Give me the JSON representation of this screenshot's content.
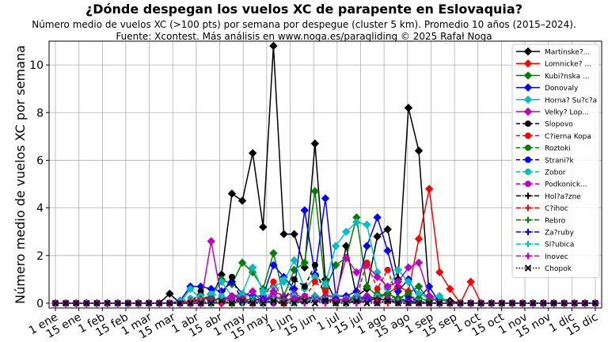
{
  "chart_data": {
    "type": "line",
    "title": "¿Dónde despegan los vuelos XC de parapente en Eslovaquia?",
    "subtitle": "Número medio de vuelos XC (>100 pts) por semana por despegue (cluster 5 km). Promedio 10 años (2015–2024).",
    "source": "Fuente: Xcontest. Más análisis en www.noga.es/paragliding © 2025 Rafał Noga",
    "ylabel": "Número medio de vuelos XC por semana",
    "xlabel": "",
    "ylim": [
      -0.2,
      11
    ],
    "yticks": [
      0,
      2,
      4,
      6,
      8,
      10
    ],
    "xlim": [
      0,
      52
    ],
    "xtick_labels": [
      "1 ene",
      "15 ene",
      "1 feb",
      "15 feb",
      "1 mar",
      "15 mar",
      "1 abr",
      "15 abr",
      "1 may",
      "15 may",
      "1 jun",
      "15 jun",
      "1 jul",
      "15 jul",
      "1 ago",
      "15 ago",
      "1 sep",
      "15 sep",
      "1 oct",
      "15 oct",
      "1 nov",
      "15 nov",
      "1 dic",
      "15 dic"
    ],
    "grid": true,
    "legend_position": "top-right",
    "x": [
      0,
      1,
      2,
      3,
      4,
      5,
      6,
      7,
      8,
      9,
      10,
      11,
      12,
      13,
      14,
      15,
      16,
      17,
      18,
      19,
      20,
      21,
      22,
      23,
      24,
      25,
      26,
      27,
      28,
      29,
      30,
      31,
      32,
      33,
      34,
      35,
      36,
      37,
      38,
      39,
      40,
      41,
      42,
      43,
      44,
      45,
      46,
      47,
      48,
      49,
      50,
      51,
      52
    ],
    "series": [
      {
        "name": "Martinske?...",
        "color": "#000000",
        "dash": "solid",
        "marker": "diamond",
        "values": [
          0,
          0,
          0,
          0,
          0,
          0,
          0,
          0,
          0,
          0,
          0,
          0.4,
          0,
          0,
          0.2,
          0.2,
          1.2,
          4.6,
          4.3,
          6.3,
          3.2,
          10.8,
          2.9,
          2.9,
          1.5,
          6.7,
          1.0,
          0.1,
          2.4,
          0.3,
          0.6,
          2.8,
          3.1,
          1.0,
          8.2,
          6.4,
          0.3,
          0.2,
          0.1,
          0,
          0,
          0,
          0,
          0,
          0,
          0,
          0,
          0,
          0,
          0,
          0,
          0,
          0
        ]
      },
      {
        "name": "Lomnicke? ...",
        "color": "#ff0000",
        "dash": "solid",
        "marker": "diamond",
        "values": [
          0,
          0,
          0,
          0,
          0,
          0,
          0,
          0,
          0,
          0,
          0,
          0,
          0,
          0,
          0,
          0,
          0,
          0,
          0.2,
          0,
          0.1,
          0.4,
          0,
          0.3,
          0.1,
          0.3,
          0.1,
          0.1,
          0,
          0.2,
          0.3,
          0.2,
          0.4,
          0.7,
          0.5,
          2.7,
          4.8,
          1.3,
          0.6,
          0,
          0.9,
          0,
          0,
          0,
          0,
          0,
          0,
          0,
          0,
          0,
          0,
          0,
          0
        ]
      },
      {
        "name": "Kubi?nska ...",
        "color": "#008000",
        "dash": "solid",
        "marker": "diamond",
        "values": [
          0,
          0,
          0,
          0,
          0,
          0,
          0,
          0,
          0,
          0,
          0,
          0,
          0,
          0,
          0,
          0.4,
          1.0,
          0.8,
          1.7,
          1.3,
          0.6,
          2.1,
          0.3,
          1.4,
          1.7,
          4.7,
          0.6,
          1.6,
          1.9,
          3.6,
          0.7,
          0.3,
          0.4,
          0.2,
          0.4,
          0.7,
          0.1,
          0.2,
          0,
          0,
          0,
          0,
          0,
          0,
          0,
          0,
          0,
          0,
          0,
          0,
          0,
          0,
          0
        ]
      },
      {
        "name": "Donovaly",
        "color": "#0000ff",
        "dash": "solid",
        "marker": "diamond",
        "values": [
          0,
          0,
          0,
          0,
          0,
          0,
          0,
          0,
          0,
          0,
          0,
          0,
          0.1,
          0.7,
          0.7,
          0.6,
          0.5,
          0.9,
          0.4,
          0.3,
          0.3,
          1.6,
          1.1,
          0.6,
          3.9,
          1.2,
          4.4,
          0.3,
          0.3,
          0.5,
          2.4,
          3.6,
          2.2,
          0.5,
          1.0,
          0.2,
          0.7,
          0,
          0,
          0,
          0,
          0,
          0,
          0,
          0,
          0,
          0,
          0,
          0,
          0,
          0,
          0,
          0
        ]
      },
      {
        "name": "Horna? Su?c?a",
        "color": "#00bfbf",
        "dash": "solid",
        "marker": "diamond",
        "values": [
          0,
          0,
          0,
          0,
          0,
          0,
          0,
          0,
          0,
          0,
          0,
          0,
          0,
          0.6,
          0.2,
          0.3,
          0.9,
          0.3,
          0.4,
          1.5,
          0.5,
          0.7,
          0.9,
          1.8,
          0.6,
          1.1,
          0.8,
          2.4,
          3.0,
          3.4,
          3.3,
          1.3,
          0.6,
          1.4,
          0.9,
          0.4,
          0.2,
          0.3,
          0,
          0,
          0,
          0,
          0,
          0,
          0,
          0,
          0,
          0,
          0,
          0,
          0,
          0,
          0
        ]
      },
      {
        "name": "Velky? Lop...",
        "color": "#bf00bf",
        "dash": "solid",
        "marker": "diamond",
        "values": [
          0,
          0,
          0,
          0,
          0,
          0,
          0,
          0,
          0,
          0,
          0,
          0,
          0,
          0,
          0,
          2.6,
          0.2,
          0.3,
          0.3,
          0.5,
          0,
          0.5,
          0.3,
          0.4,
          0.2,
          0.2,
          0.3,
          0.3,
          1.9,
          1.3,
          1.6,
          1.1,
          0.7,
          0.9,
          1.5,
          1.7,
          0.3,
          0,
          0,
          0,
          0,
          0,
          0,
          0,
          0,
          0,
          0,
          0,
          0,
          0,
          0,
          0,
          0
        ]
      },
      {
        "name": "Slopovo",
        "color": "#000000",
        "dash": "dash",
        "marker": "circle",
        "values": [
          0,
          0,
          0,
          0,
          0,
          0,
          0,
          0,
          0,
          0,
          0,
          0,
          0,
          0,
          0.5,
          0,
          0.3,
          1.1,
          0,
          0,
          0.1,
          0,
          0,
          1.0,
          0.7,
          1.6,
          0.2,
          0.1,
          0.1,
          0.1,
          0.3,
          0.2,
          0.1,
          0.1,
          0.1,
          0,
          0,
          0,
          0,
          0,
          0,
          0,
          0,
          0,
          0,
          0,
          0,
          0,
          0,
          0,
          0,
          0,
          0
        ]
      },
      {
        "name": "C?ierna Kopa",
        "color": "#ff0000",
        "dash": "dash",
        "marker": "circle",
        "values": [
          0,
          0,
          0,
          0,
          0,
          0,
          0,
          0,
          0,
          0,
          0,
          0,
          0,
          0.2,
          0.1,
          0.3,
          0.1,
          0.3,
          0.2,
          0,
          0.2,
          0.9,
          0.1,
          0.2,
          0.2,
          0.9,
          0.5,
          0.1,
          0.2,
          0.3,
          1.7,
          0.6,
          1.4,
          0.2,
          0.3,
          0.1,
          0,
          0,
          0,
          0,
          0,
          0,
          0,
          0,
          0,
          0,
          0,
          0,
          0,
          0,
          0,
          0,
          0
        ]
      },
      {
        "name": "Roztoki",
        "color": "#008000",
        "dash": "dash",
        "marker": "circle",
        "values": [
          0,
          0,
          0,
          0,
          0,
          0,
          0,
          0,
          0,
          0,
          0,
          0,
          0,
          0,
          0.1,
          0,
          0.1,
          0,
          0.2,
          0,
          0.1,
          0.2,
          0,
          0.3,
          0.1,
          0.2,
          0.1,
          0.2,
          0.1,
          0.3,
          0.2,
          0.4,
          0.3,
          0.2,
          0.3,
          0.2,
          0.1,
          0,
          0,
          0,
          0,
          0,
          0,
          0,
          0,
          0,
          0,
          0,
          0,
          0,
          0,
          0,
          0
        ]
      },
      {
        "name": "Strani?k",
        "color": "#0000ff",
        "dash": "dash",
        "marker": "circle",
        "values": [
          0,
          0,
          0,
          0,
          0,
          0,
          0,
          0,
          0,
          0,
          0,
          0,
          0,
          0,
          0.1,
          0.2,
          0.1,
          0.3,
          0.1,
          0.2,
          0.1,
          0.3,
          0.2,
          0.1,
          0.3,
          0.2,
          0.1,
          0.2,
          0.1,
          0.2,
          0.3,
          0.1,
          0.2,
          0.1,
          0.2,
          0.1,
          0,
          0,
          0,
          0,
          0,
          0,
          0,
          0,
          0,
          0,
          0,
          0,
          0,
          0,
          0,
          0,
          0
        ]
      },
      {
        "name": "Zobor",
        "color": "#00bfbf",
        "dash": "dash",
        "marker": "circle",
        "values": [
          0,
          0,
          0,
          0,
          0,
          0,
          0,
          0,
          0,
          0,
          0,
          0,
          0.1,
          0.2,
          0.3,
          0.4,
          0.3,
          0.2,
          0.3,
          0.2,
          0.4,
          0.3,
          1.0,
          0.3,
          0.2,
          0.3,
          0.2,
          0.3,
          0.2,
          0.3,
          0.2,
          0.3,
          0.2,
          0.1,
          0.1,
          0.1,
          0,
          0,
          0,
          0,
          0,
          0,
          0,
          0,
          0,
          0,
          0,
          0,
          0,
          0,
          0,
          0,
          0
        ]
      },
      {
        "name": "Podkonick...",
        "color": "#bf00bf",
        "dash": "dash",
        "marker": "circle",
        "values": [
          0,
          0,
          0,
          0,
          0,
          0,
          0,
          0,
          0,
          0,
          0,
          0,
          0,
          0,
          0.1,
          0.2,
          0.1,
          0.3,
          0.2,
          0.1,
          0.2,
          0.3,
          0.1,
          0.2,
          0.3,
          0.2,
          0.1,
          0.2,
          0.1,
          0.2,
          0.3,
          0.1,
          0.2,
          0.1,
          0.1,
          0,
          0,
          0,
          0,
          0,
          0,
          0,
          0,
          0,
          0,
          0,
          0,
          0,
          0,
          0,
          0,
          0,
          0
        ]
      },
      {
        "name": "Hol?a?zne",
        "color": "#000000",
        "dash": "dashdot",
        "marker": "plus",
        "values": [
          0,
          0,
          0,
          0,
          0,
          0,
          0,
          0,
          0,
          0,
          0,
          0,
          0,
          0,
          0.1,
          0,
          0.1,
          0.2,
          0,
          0.1,
          0,
          0.1,
          0,
          0.1,
          0,
          0.2,
          0.1,
          0,
          0.1,
          0,
          0.1,
          0.2,
          0.1,
          0,
          0.1,
          0,
          0,
          0,
          0,
          0,
          0,
          0,
          0,
          0,
          0,
          0,
          0,
          0,
          0,
          0,
          0,
          0,
          0
        ]
      },
      {
        "name": "C?ihoc",
        "color": "#ff0000",
        "dash": "dashdot",
        "marker": "plus",
        "values": [
          0,
          0,
          0,
          0,
          0,
          0,
          0,
          0,
          0,
          0,
          0,
          0,
          0,
          0.1,
          0.2,
          0.1,
          0,
          0.2,
          0.1,
          0,
          0.1,
          0.2,
          0,
          0.1,
          0.2,
          0.1,
          0,
          0.2,
          0.1,
          0,
          0.2,
          0.1,
          0,
          0.1,
          0.1,
          0,
          0,
          0,
          0,
          0,
          0,
          0,
          0,
          0,
          0,
          0,
          0,
          0,
          0,
          0,
          0,
          0,
          0
        ]
      },
      {
        "name": "Rebro",
        "color": "#008000",
        "dash": "dashdot",
        "marker": "plus",
        "values": [
          0,
          0,
          0,
          0,
          0,
          0,
          0,
          0,
          0,
          0,
          0,
          0,
          0,
          0,
          0,
          0.2,
          0.1,
          0,
          0.1,
          0.2,
          0.1,
          0,
          0.2,
          0.1,
          0,
          0.1,
          0.2,
          0,
          0.1,
          0.2,
          0.1,
          0,
          0.1,
          0.2,
          0,
          0.1,
          0,
          0,
          0,
          0,
          0,
          0,
          0,
          0,
          0,
          0,
          0,
          0,
          0,
          0,
          0,
          0,
          0
        ]
      },
      {
        "name": "Za?ruby",
        "color": "#0000ff",
        "dash": "dashdot",
        "marker": "plus",
        "values": [
          0,
          0,
          0,
          0,
          0,
          0,
          0,
          0,
          0,
          0,
          0,
          0,
          0,
          0,
          0,
          0.1,
          0.2,
          0.1,
          0,
          0.1,
          0.2,
          0,
          0.1,
          0.2,
          0,
          0.1,
          0.1,
          0.2,
          0,
          0.1,
          0.2,
          0,
          0.1,
          0,
          0.1,
          0,
          0,
          0,
          0,
          0,
          0,
          0,
          0,
          0,
          0,
          0,
          0,
          0,
          0,
          0,
          0,
          0,
          0
        ]
      },
      {
        "name": "Sl?ubica",
        "color": "#00bfbf",
        "dash": "dashdot",
        "marker": "plus",
        "values": [
          0,
          0,
          0,
          0,
          0,
          0,
          0,
          0,
          0,
          0,
          0,
          0,
          0,
          0,
          0.1,
          0,
          0.2,
          0.1,
          0,
          0.1,
          0,
          0.2,
          0.1,
          0,
          0.1,
          0.2,
          0,
          0.1,
          0,
          0.2,
          0.1,
          0,
          0.1,
          0.1,
          0,
          0,
          0,
          0,
          0,
          0,
          0,
          0,
          0,
          0,
          0,
          0,
          0,
          0,
          0,
          0,
          0,
          0,
          0
        ]
      },
      {
        "name": "Inovec",
        "color": "#bf00bf",
        "dash": "dashdot",
        "marker": "plus",
        "values": [
          0,
          0,
          0,
          0,
          0,
          0,
          0,
          0,
          0,
          0,
          0,
          0,
          0,
          0,
          0,
          0.1,
          0,
          0.2,
          0.1,
          0,
          0.1,
          0,
          0.1,
          0.2,
          0,
          0.1,
          0,
          0.1,
          0.2,
          0,
          0.1,
          0,
          0.1,
          0,
          0,
          0,
          0,
          0,
          0,
          0,
          0,
          0,
          0,
          0,
          0,
          0,
          0,
          0,
          0,
          0,
          0,
          0,
          0
        ]
      },
      {
        "name": "Chopok",
        "color": "#000000",
        "dash": "dot",
        "marker": "x",
        "values": [
          0,
          0,
          0,
          0,
          0,
          0,
          0,
          0,
          0,
          0,
          0,
          0,
          0,
          0,
          0,
          0,
          0.1,
          0,
          0.1,
          0,
          0,
          0.1,
          0,
          0,
          0.1,
          0,
          0.1,
          0,
          0,
          0.1,
          0,
          0,
          0.1,
          0,
          0,
          0,
          0,
          0,
          0,
          0,
          0,
          0,
          0,
          0,
          0,
          0,
          0,
          0,
          0,
          0,
          0,
          0,
          0
        ]
      }
    ]
  }
}
